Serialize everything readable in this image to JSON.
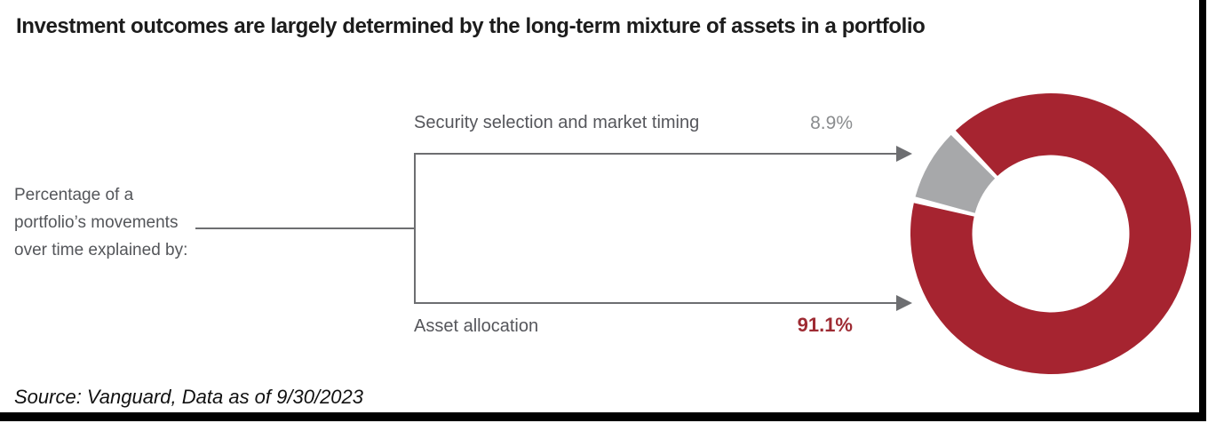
{
  "slide": {
    "title": "Investment outcomes are largely determined by the long-term mixture of assets in a portfolio",
    "source_note": "Source: Vanguard, Data as of 9/30/2023"
  },
  "left_label": {
    "lines": [
      "Percentage of a",
      "portfolio’s movements",
      "over time explained by:"
    ]
  },
  "chart_data": {
    "type": "pie",
    "subtype": "donut",
    "title": "Investment outcomes are largely determined by the long-term mixture of assets in a portfolio",
    "annotation": "Percentage of a portfolio’s movements over time explained by:",
    "source": "Source: Vanguard, Data as of 9/30/2023",
    "slices": [
      {
        "id": "asset-allocation",
        "label": "Asset allocation",
        "value": 91.1,
        "display": "91.1%",
        "color": "#a62430"
      },
      {
        "id": "security-selection",
        "label": "Security selection and market timing",
        "value": 8.9,
        "display": "8.9%",
        "color": "#a7a8aa"
      }
    ],
    "start_angle": 316,
    "clockwise": true,
    "donut_hole_ratio": 0.56,
    "slice_gap_degrees": 2.6,
    "legend_position": "none",
    "labels_position": "left-callouts-with-arrows"
  },
  "colors": {
    "donut_red": "#a62430",
    "donut_gray": "#a7a8aa",
    "connector_gray": "#6d6e71",
    "pct_gray_text": "#8a8c8e",
    "pct_red_text": "#9e2b33",
    "title_text": "#1c1c1c",
    "body_text": "#54565a",
    "edge_bar": "#000000"
  }
}
